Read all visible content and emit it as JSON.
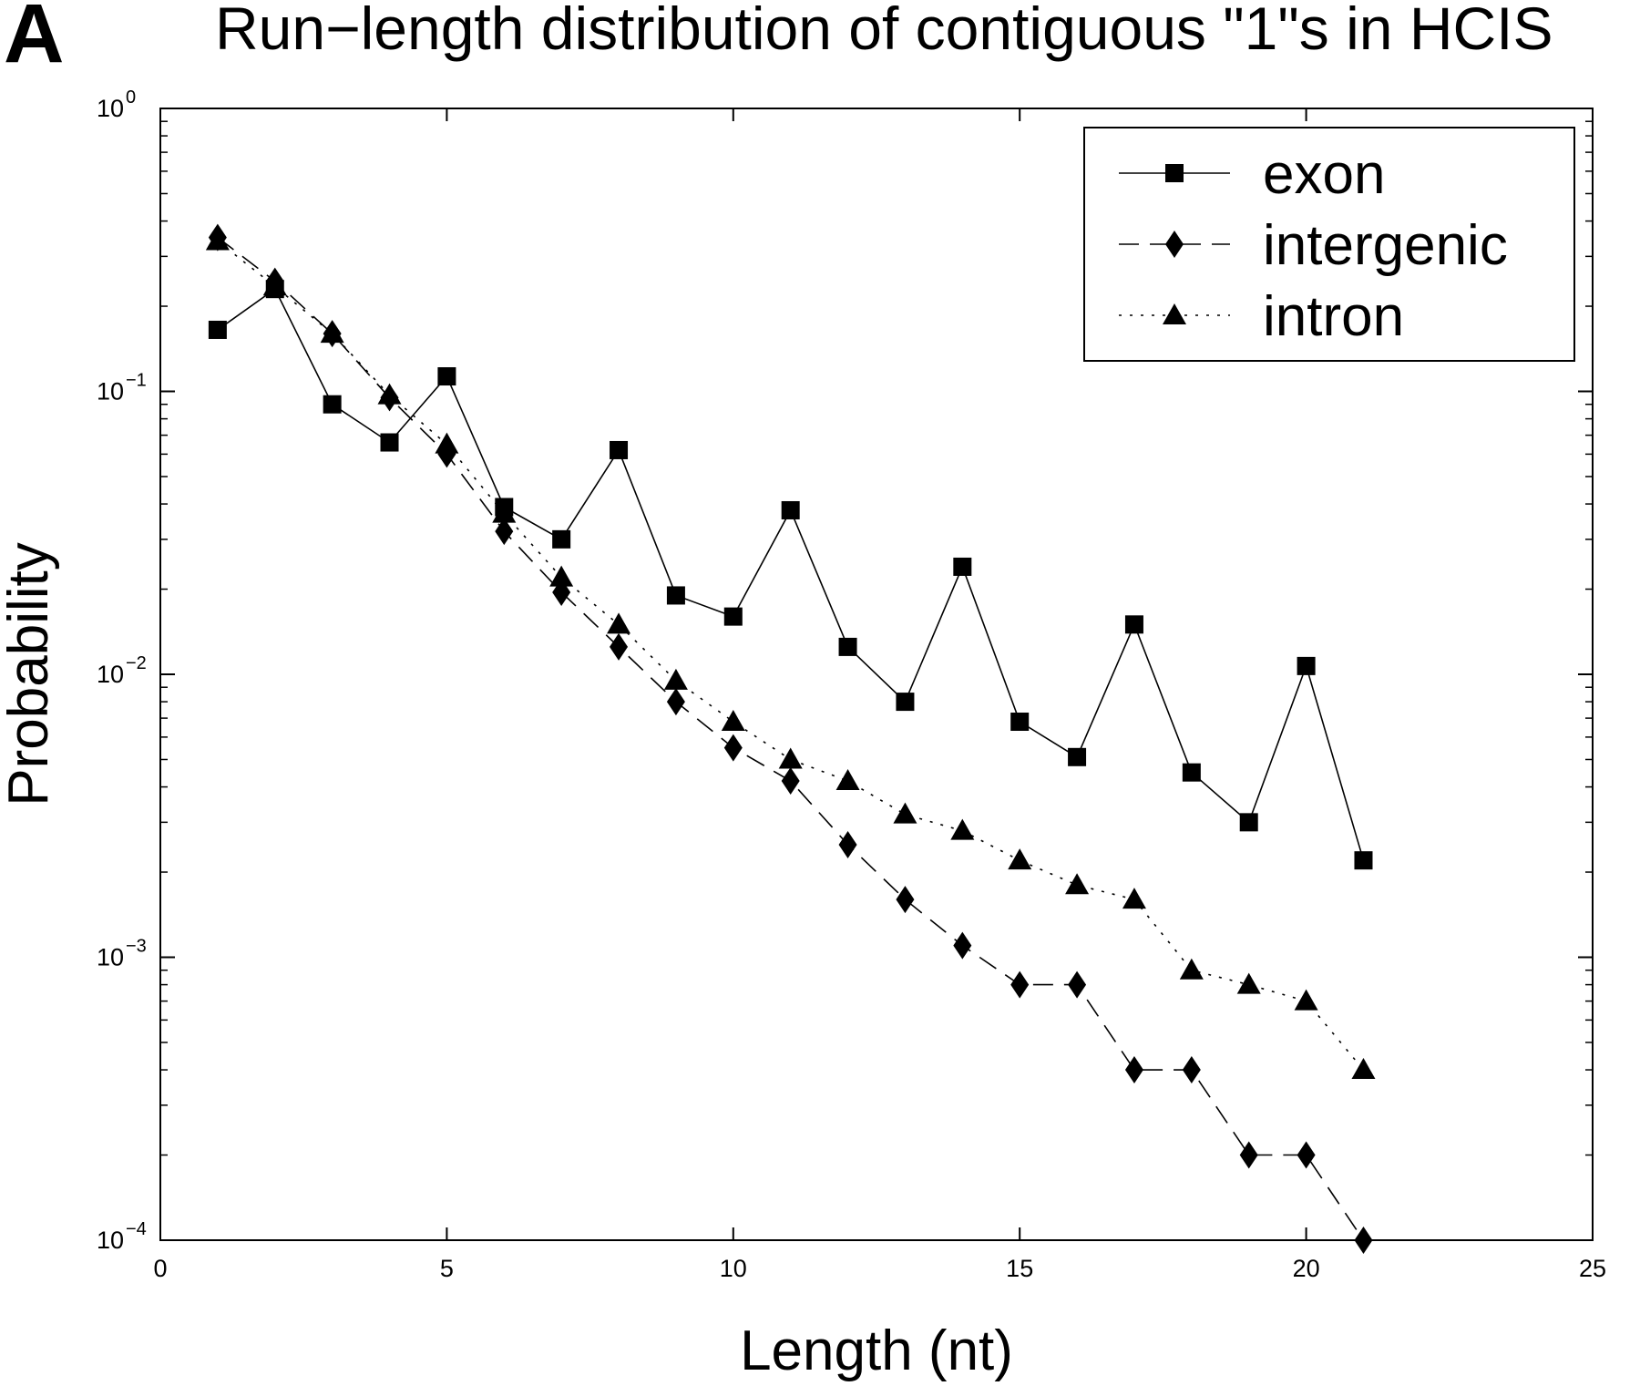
{
  "panel_label": "A",
  "chart_data": {
    "type": "line",
    "title": "Run−length distribution of contiguous \"1\"s in HCIS",
    "xlabel": "Length (nt)",
    "ylabel": "Probability",
    "xlim": [
      0,
      25
    ],
    "ylim": [
      0.0001,
      1
    ],
    "yscale": "log",
    "x_ticks": [
      "0",
      "5",
      "10",
      "15",
      "20",
      "25"
    ],
    "y_ticks": [
      {
        "base": "10",
        "exp": "0"
      },
      {
        "base": "10",
        "exp": "−1"
      },
      {
        "base": "10",
        "exp": "−2"
      },
      {
        "base": "10",
        "exp": "−3"
      },
      {
        "base": "10",
        "exp": "−4"
      }
    ],
    "grid": false,
    "legend_position": "top-right",
    "series": [
      {
        "name": "exon",
        "line_style": "solid",
        "marker": "square",
        "x": [
          1,
          2,
          3,
          4,
          5,
          6,
          7,
          8,
          9,
          10,
          11,
          12,
          13,
          14,
          15,
          16,
          17,
          18,
          19,
          20,
          21
        ],
        "values": [
          0.165,
          0.23,
          0.09,
          0.066,
          0.113,
          0.039,
          0.03,
          0.062,
          0.019,
          0.016,
          0.038,
          0.0125,
          0.008,
          0.024,
          0.0068,
          0.0051,
          0.015,
          0.0045,
          0.003,
          0.0107,
          0.0022
        ]
      },
      {
        "name": "intergenic",
        "line_style": "dashed",
        "marker": "diamond",
        "x": [
          1,
          2,
          3,
          4,
          5,
          6,
          7,
          8,
          9,
          10,
          11,
          12,
          13,
          14,
          15,
          16,
          17,
          18,
          19,
          20,
          21
        ],
        "values": [
          0.35,
          0.245,
          0.16,
          0.095,
          0.06,
          0.032,
          0.0195,
          0.0125,
          0.008,
          0.0055,
          0.0042,
          0.0025,
          0.0016,
          0.0011,
          0.0008,
          0.0008,
          0.0004,
          0.0004,
          0.0002,
          0.0002,
          0.0001
        ]
      },
      {
        "name": "intron",
        "line_style": "dotted",
        "marker": "triangle",
        "x": [
          1,
          2,
          3,
          4,
          5,
          6,
          7,
          8,
          9,
          10,
          11,
          12,
          13,
          14,
          15,
          16,
          17,
          18,
          19,
          20,
          21
        ],
        "values": [
          0.34,
          0.235,
          0.16,
          0.097,
          0.065,
          0.037,
          0.022,
          0.015,
          0.0095,
          0.0068,
          0.005,
          0.0042,
          0.0032,
          0.0028,
          0.0022,
          0.0018,
          0.0016,
          0.0009,
          0.0008,
          0.0007,
          0.0004
        ]
      }
    ]
  }
}
